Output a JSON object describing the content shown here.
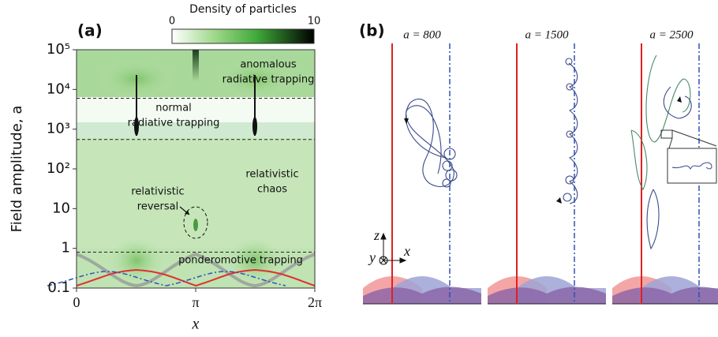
{
  "panel_a": {
    "label": "(a)",
    "colorbar": {
      "title": "Density of particles",
      "ticks": [
        0,
        10
      ]
    },
    "y_label": "Field amplitude, a",
    "x_label": "x",
    "ylim": [
      0.1,
      100000
    ],
    "xlim": [
      0,
      6.2832
    ],
    "yticks": [
      0.1,
      1,
      10,
      {
        "value": 100,
        "label": "10²"
      },
      {
        "value": 1000,
        "label": "10³"
      },
      {
        "value": 10000,
        "label": "10⁴"
      },
      {
        "value": 100000,
        "label": "10⁵"
      }
    ],
    "xticks": [
      0,
      {
        "value": 3.1416,
        "label": "π"
      },
      {
        "value": 6.2832,
        "label": "2π"
      }
    ],
    "thresholds": [
      6000,
      550,
      0.8
    ],
    "annotations": [
      {
        "lines": [
          "anomalous",
          "radiative trapping"
        ]
      },
      {
        "lines": [
          "normal",
          "radiative trapping"
        ]
      },
      {
        "lines": [
          "relativistic",
          "chaos"
        ]
      },
      {
        "lines": [
          "relativistic",
          "reversal"
        ]
      },
      {
        "lines": [
          "ponderomotive trapping"
        ]
      }
    ]
  },
  "panel_b": {
    "label": "(b)",
    "subpanels": [
      {
        "title": "a = 800"
      },
      {
        "title": "a = 1500"
      },
      {
        "title": "a = 2500"
      }
    ],
    "axes": {
      "z": "z",
      "y": "y",
      "x": "x"
    }
  }
}
